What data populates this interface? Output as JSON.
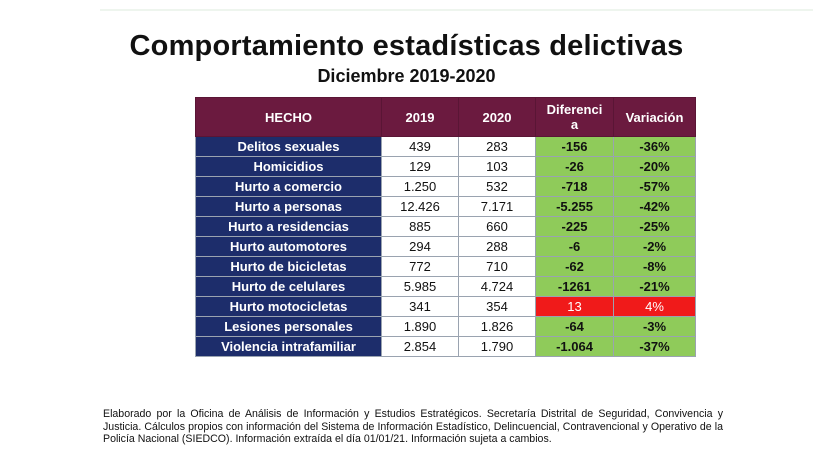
{
  "title": "Comportamiento estadísticas delictivas",
  "subtitle": "Diciembre 2019-2020",
  "table": {
    "headers": {
      "hecho": "HECHO",
      "y2019": "2019",
      "y2020": "2020",
      "diferencia_line1": "Diferenci",
      "diferencia_line2": "a",
      "variacion": "Variación"
    },
    "rows": [
      {
        "hecho": "Delitos sexuales",
        "y2019": "439",
        "y2020": "283",
        "diferencia": "-156",
        "variacion": "-36%"
      },
      {
        "hecho": "Homicidios",
        "y2019": "129",
        "y2020": "103",
        "diferencia": "-26",
        "variacion": "-20%"
      },
      {
        "hecho": "Hurto a comercio",
        "y2019": "1.250",
        "y2020": "532",
        "diferencia": "-718",
        "variacion": "-57%"
      },
      {
        "hecho": "Hurto a personas",
        "y2019": "12.426",
        "y2020": "7.171",
        "diferencia": "-5.255",
        "variacion": "-42%"
      },
      {
        "hecho": "Hurto a residencias",
        "y2019": "885",
        "y2020": "660",
        "diferencia": "-225",
        "variacion": "-25%"
      },
      {
        "hecho": "Hurto automotores",
        "y2019": "294",
        "y2020": "288",
        "diferencia": "-6",
        "variacion": "-2%"
      },
      {
        "hecho": "Hurto de bicicletas",
        "y2019": "772",
        "y2020": "710",
        "diferencia": "-62",
        "variacion": "-8%"
      },
      {
        "hecho": "Hurto de celulares",
        "y2019": "5.985",
        "y2020": "4.724",
        "diferencia": "-1261",
        "variacion": "-21%"
      },
      {
        "hecho": "Hurto motocicletas",
        "y2019": "341",
        "y2020": "354",
        "diferencia": "13",
        "variacion": "4%"
      },
      {
        "hecho": "Lesiones personales",
        "y2019": "1.890",
        "y2020": "1.826",
        "diferencia": "-64",
        "variacion": "-3%"
      },
      {
        "hecho": "Violencia intrafamiliar",
        "y2019": "2.854",
        "y2020": "1.790",
        "diferencia": "-1.064",
        "variacion": "-37%"
      }
    ]
  },
  "colors": {
    "header_bg": "#6b1a3f",
    "label_bg": "#1d2d6b",
    "decrease_bg": "#8fcb5a",
    "increase_bg": "#f01a1a"
  },
  "footnote": "Elaborado por la Oficina de Análisis de Información y Estudios Estratégicos. Secretaría Distrital de Seguridad, Convivencia y Justicia. Cálculos propios con información del Sistema de Información Estadístico, Delincuencial, Contravencional y Operativo de la Policía Nacional (SIEDCO). Información extraída el día 01/01/21. Información sujeta a cambios."
}
